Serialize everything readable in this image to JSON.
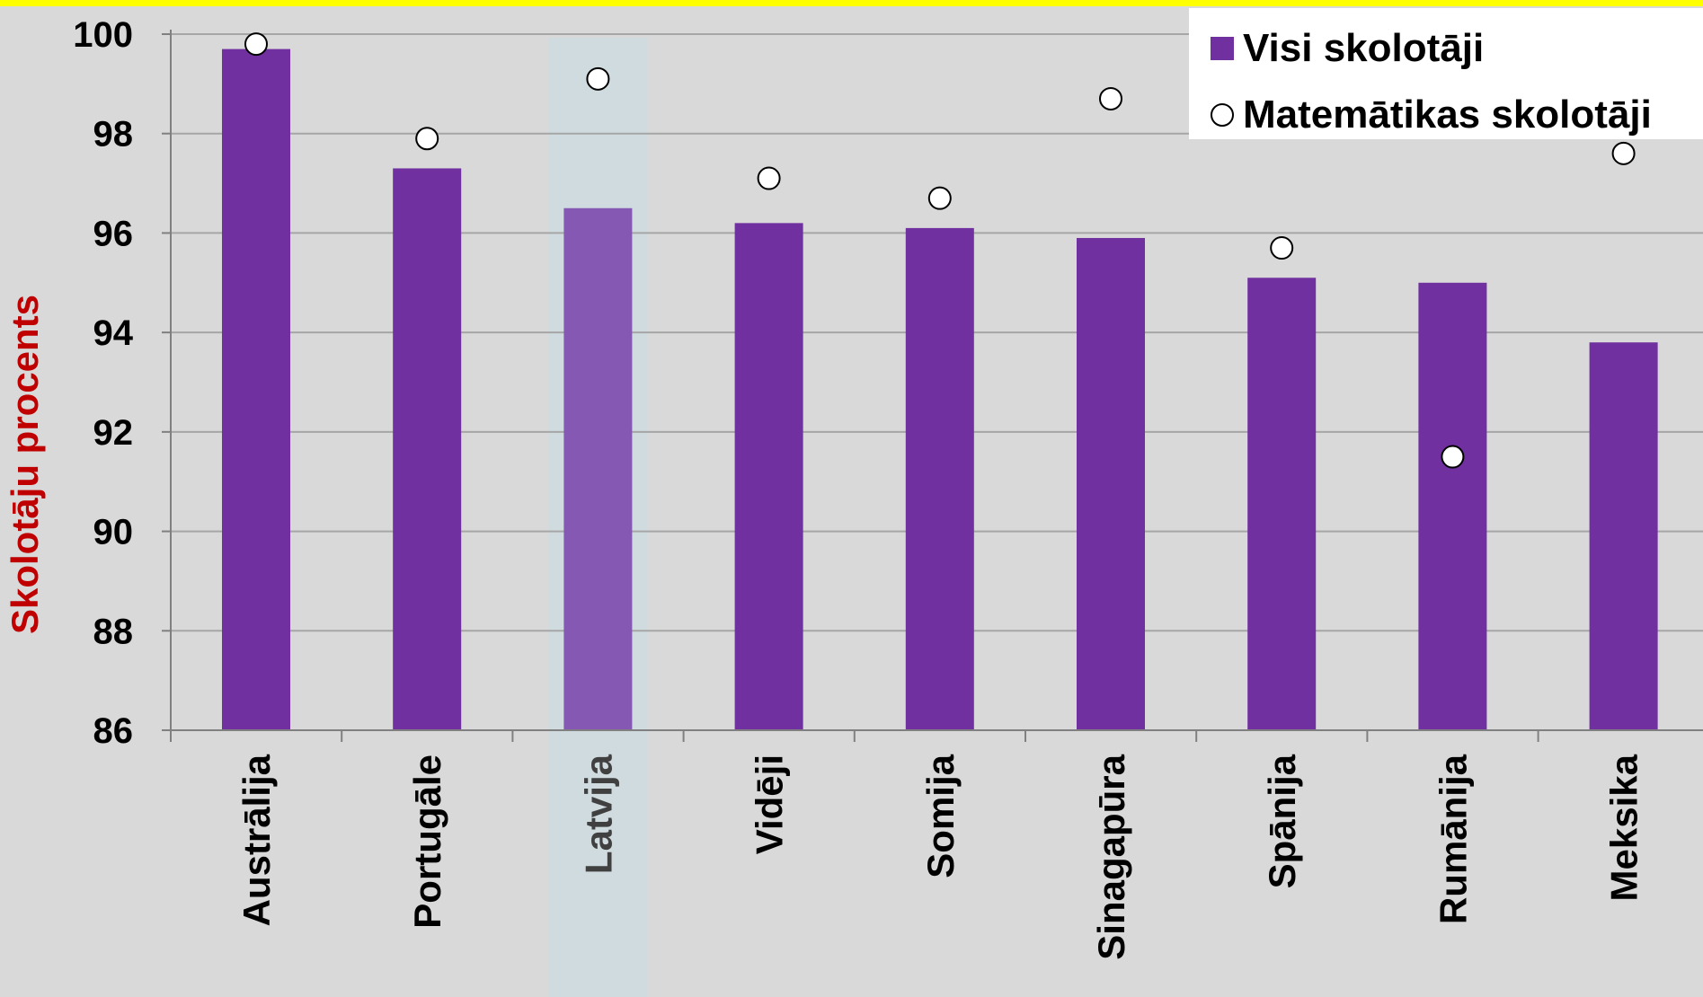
{
  "colors": {
    "background": "#d9d9d9",
    "top_bar": "#ffff00",
    "bar": "#7030a0",
    "bar_highlight": "#8558b4",
    "highlight_band": "#cfdbdf",
    "marker_fill": "#ffffff",
    "ylabel": "#c00000",
    "grid": "#a6a6a6"
  },
  "chart_data": {
    "type": "bar",
    "categories": [
      "Austrālija",
      "Portugāle",
      "Latvija",
      "Vidēji",
      "Somija",
      "Sinagapūra",
      "Spānija",
      "Rumānija",
      "Meksika"
    ],
    "highlight_category": "Latvija",
    "series": [
      {
        "name": "Visi skolotāji",
        "type": "bar",
        "values": [
          99.7,
          97.3,
          96.5,
          96.2,
          96.1,
          95.9,
          95.1,
          95.0,
          93.8
        ]
      },
      {
        "name": "Matemātikas skolotāji",
        "type": "scatter",
        "marker": "circle",
        "values": [
          99.8,
          97.9,
          99.1,
          97.1,
          96.7,
          98.7,
          95.7,
          91.5,
          97.6
        ]
      }
    ],
    "ylabel": "Skolotāju procents",
    "xlabel": "",
    "ylim": [
      86,
      100
    ],
    "yticks": [
      86,
      88,
      90,
      92,
      94,
      96,
      98,
      100
    ],
    "grid": "horizontal",
    "legend": "top-right"
  }
}
